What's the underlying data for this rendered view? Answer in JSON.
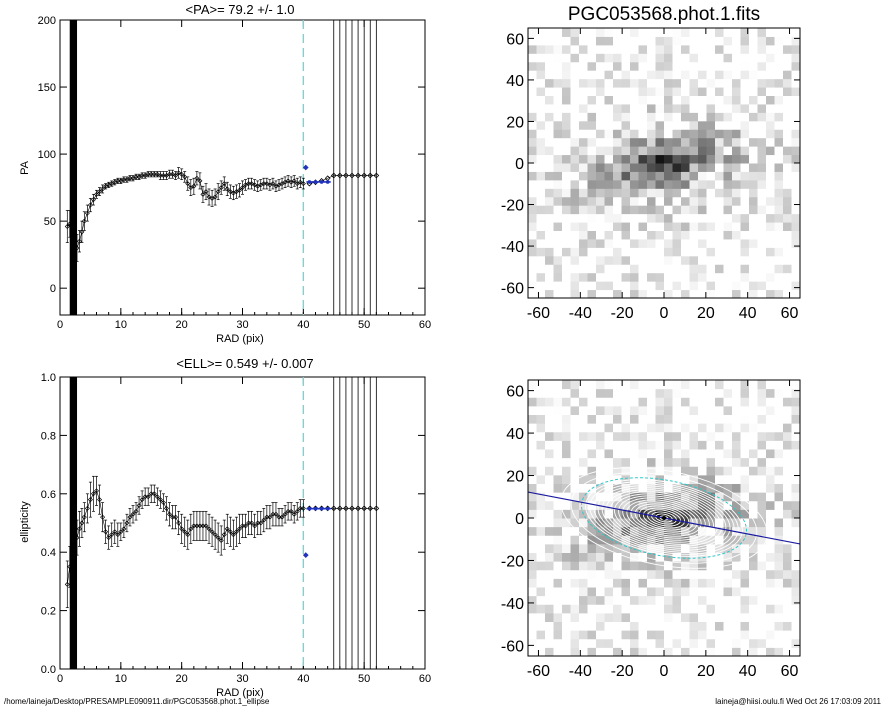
{
  "footer": {
    "path": "/home/laineja/Desktop/PRESAMPLE090911.dir/PGC053568.phot.1_ellipse",
    "stamp": "laineja@hiisi.oulu.fi  Wed Oct 26 17:03:09 2011"
  },
  "image_title": "PGC053568.phot.1.fits",
  "chart_data": [
    {
      "type": "scatter",
      "title": "<PA>=  79.2 +/-   1.0",
      "xlabel": "RAD (pix)",
      "ylabel": "PA",
      "xlim": [
        0,
        60
      ],
      "ylim": [
        -20,
        200
      ],
      "xticks": [
        0,
        10,
        20,
        30,
        40,
        50,
        60
      ],
      "yticks": [
        0,
        50,
        100,
        150,
        200
      ],
      "vlines_dashed": [
        40
      ],
      "vlines_solid": [
        45,
        46,
        47,
        48,
        49,
        50,
        51,
        52
      ],
      "series": [
        {
          "x": [
            1.2,
            1.6,
            2.0,
            2.4,
            2.8,
            3.2,
            3.6,
            4.0,
            4.5,
            5.0,
            5.5,
            6.0,
            6.5,
            7.0,
            7.5,
            8.0,
            8.5,
            9.0,
            9.5,
            10,
            10.5,
            11,
            11.5,
            12,
            12.5,
            13,
            13.5,
            14,
            14.5,
            15,
            15.5,
            16,
            16.5,
            17,
            17.5,
            18,
            18.5,
            19,
            19.5,
            20,
            20.5,
            21,
            21.5,
            22,
            22.5,
            23,
            23.5,
            24,
            24.5,
            25,
            25.5,
            26,
            26.5,
            27,
            27.5,
            28,
            28.5,
            29,
            29.5,
            30,
            30.5,
            31,
            31.5,
            32,
            32.5,
            33,
            33.5,
            34,
            34.5,
            35,
            35.5,
            36,
            36.5,
            37,
            37.5,
            38,
            38.5,
            39,
            39.5,
            40
          ],
          "y": [
            46,
            48,
            44,
            38,
            30,
            35,
            42,
            50,
            56,
            62,
            66,
            70,
            72,
            74,
            76,
            77,
            78,
            79,
            80,
            80,
            81,
            81,
            82,
            82,
            83,
            83,
            84,
            84,
            85,
            85,
            85,
            85,
            84,
            84,
            84,
            85,
            85,
            84,
            86,
            85,
            83,
            78,
            75,
            76,
            82,
            80,
            70,
            72,
            68,
            67,
            68,
            72,
            75,
            78,
            74,
            72,
            71,
            72,
            73,
            75,
            77,
            78,
            78,
            77,
            76,
            77,
            78,
            78,
            77,
            78,
            76,
            77,
            78,
            79,
            80,
            79,
            80,
            78,
            79,
            78
          ],
          "err": [
            12,
            10,
            9,
            8,
            10,
            8,
            8,
            7,
            6,
            5,
            4,
            3,
            3,
            3,
            2,
            2,
            2,
            2,
            2,
            2,
            2,
            2,
            2,
            2,
            2,
            2,
            2,
            2,
            2,
            2,
            2,
            2,
            3,
            3,
            3,
            3,
            3,
            3,
            4,
            4,
            4,
            5,
            6,
            6,
            5,
            6,
            6,
            6,
            6,
            6,
            6,
            6,
            5,
            5,
            5,
            5,
            5,
            5,
            5,
            5,
            4,
            4,
            4,
            4,
            4,
            4,
            4,
            4,
            4,
            4,
            4,
            4,
            4,
            4,
            4,
            4,
            4,
            4,
            4,
            4
          ]
        },
        {
          "x": [
            40.4,
            41,
            42,
            43,
            44,
            45,
            46,
            47,
            48,
            49,
            50,
            51,
            52
          ],
          "y": [
            90,
            78,
            79,
            80,
            82,
            84,
            84,
            84,
            84,
            84,
            84,
            84,
            84
          ]
        }
      ],
      "fit": {
        "x": [
          40.5,
          44.5
        ],
        "y": [
          79.2,
          79.2
        ]
      }
    },
    {
      "type": "scatter",
      "title": "<ELL>= 0.549 +/-  0.007",
      "xlabel": "RAD (pix)",
      "ylabel": "ellipticity",
      "xlim": [
        0,
        60
      ],
      "ylim": [
        0,
        1
      ],
      "xticks": [
        0,
        10,
        20,
        30,
        40,
        50,
        60
      ],
      "yticks": [
        0.0,
        0.2,
        0.4,
        0.6,
        0.8,
        1.0
      ],
      "vlines_dashed": [
        40
      ],
      "vlines_solid": [
        45,
        46,
        47,
        48,
        49,
        50,
        51,
        52
      ],
      "series": [
        {
          "x": [
            1.2,
            1.6,
            2.0,
            2.4,
            2.8,
            3.2,
            3.6,
            4.0,
            4.5,
            5.0,
            5.5,
            6.0,
            6.5,
            7.0,
            7.5,
            8.0,
            8.5,
            9.0,
            9.5,
            10,
            10.5,
            11,
            11.5,
            12,
            12.5,
            13,
            13.5,
            14,
            14.5,
            15,
            15.5,
            16,
            16.5,
            17,
            17.5,
            18,
            18.5,
            19,
            19.5,
            20,
            20.5,
            21,
            21.5,
            22,
            22.5,
            23,
            23.5,
            24,
            24.5,
            25,
            25.5,
            26,
            26.5,
            27,
            27.5,
            28,
            28.5,
            29,
            29.5,
            30,
            30.5,
            31,
            31.5,
            32,
            32.5,
            33,
            33.5,
            34,
            34.5,
            35,
            35.5,
            36,
            36.5,
            37,
            37.5,
            38,
            38.5,
            39,
            39.5,
            40
          ],
          "y": [
            0.29,
            0.35,
            0.4,
            0.42,
            0.45,
            0.48,
            0.5,
            0.52,
            0.55,
            0.58,
            0.6,
            0.61,
            0.58,
            0.52,
            0.47,
            0.45,
            0.46,
            0.47,
            0.46,
            0.47,
            0.48,
            0.5,
            0.52,
            0.53,
            0.54,
            0.56,
            0.58,
            0.59,
            0.59,
            0.6,
            0.6,
            0.59,
            0.58,
            0.57,
            0.55,
            0.53,
            0.52,
            0.52,
            0.5,
            0.48,
            0.47,
            0.46,
            0.48,
            0.49,
            0.49,
            0.49,
            0.49,
            0.49,
            0.48,
            0.47,
            0.46,
            0.45,
            0.44,
            0.46,
            0.48,
            0.47,
            0.46,
            0.47,
            0.48,
            0.49,
            0.49,
            0.5,
            0.5,
            0.49,
            0.5,
            0.5,
            0.51,
            0.52,
            0.52,
            0.53,
            0.53,
            0.52,
            0.52,
            0.53,
            0.54,
            0.54,
            0.53,
            0.54,
            0.55,
            0.55
          ],
          "err": [
            0.08,
            0.07,
            0.07,
            0.06,
            0.06,
            0.06,
            0.05,
            0.05,
            0.05,
            0.06,
            0.06,
            0.05,
            0.05,
            0.05,
            0.04,
            0.04,
            0.04,
            0.04,
            0.04,
            0.03,
            0.03,
            0.03,
            0.03,
            0.03,
            0.03,
            0.03,
            0.03,
            0.03,
            0.03,
            0.03,
            0.03,
            0.03,
            0.03,
            0.03,
            0.04,
            0.04,
            0.04,
            0.04,
            0.04,
            0.05,
            0.05,
            0.05,
            0.05,
            0.05,
            0.05,
            0.05,
            0.05,
            0.05,
            0.05,
            0.05,
            0.05,
            0.05,
            0.05,
            0.05,
            0.05,
            0.05,
            0.05,
            0.05,
            0.05,
            0.04,
            0.04,
            0.04,
            0.04,
            0.04,
            0.04,
            0.04,
            0.04,
            0.04,
            0.04,
            0.04,
            0.04,
            0.03,
            0.03,
            0.03,
            0.03,
            0.03,
            0.03,
            0.03,
            0.03,
            0.03
          ]
        },
        {
          "x": [
            40.4,
            41,
            42,
            43,
            44,
            45,
            46,
            47,
            48,
            49,
            50,
            51,
            52
          ],
          "y": [
            0.39,
            0.55,
            0.55,
            0.55,
            0.55,
            0.55,
            0.55,
            0.55,
            0.55,
            0.55,
            0.55,
            0.55,
            0.55
          ]
        }
      ],
      "fit": {
        "x": [
          40.5,
          44.5
        ],
        "y": [
          0.549,
          0.549
        ]
      }
    },
    {
      "type": "heatmap",
      "title": "PGC053568.phot.1.fits",
      "xlim": [
        -65,
        65
      ],
      "ylim": [
        -65,
        65
      ],
      "xticks": [
        -60,
        -40,
        -20,
        0,
        20,
        40,
        60
      ],
      "yticks": [
        -60,
        -40,
        -20,
        0,
        20,
        40,
        60
      ],
      "galaxy": {
        "center": [
          0,
          0
        ],
        "pa_deg": 79.2,
        "ellipticity": 0.549,
        "extent": 60
      }
    },
    {
      "type": "heatmap",
      "xlim": [
        -65,
        65
      ],
      "ylim": [
        -65,
        65
      ],
      "xticks": [
        -60,
        -40,
        -20,
        0,
        20,
        40,
        60
      ],
      "yticks": [
        -60,
        -40,
        -20,
        0,
        20,
        40,
        60
      ],
      "galaxy": {
        "center": [
          0,
          0
        ],
        "pa_deg": 79.2,
        "ellipticity": 0.549,
        "extent": 60
      },
      "overlay": {
        "isophote_semi_major_axes": [
          2,
          4,
          6,
          8,
          10,
          12,
          14,
          16,
          18,
          20,
          22,
          24,
          26,
          28,
          30,
          32,
          34,
          36,
          38
        ],
        "outer_ellipse_semi_major_axes": [
          45,
          50
        ],
        "fit_ellipse_semi_major_axis": 40,
        "major_axis_line": true
      }
    }
  ],
  "colors": {
    "fit": "#2233bb",
    "dashed_line": "#66dddd",
    "isophote": "#ffffff",
    "major_axis": "#1a1aa0",
    "fit_ellipse": "#33c8c8"
  }
}
